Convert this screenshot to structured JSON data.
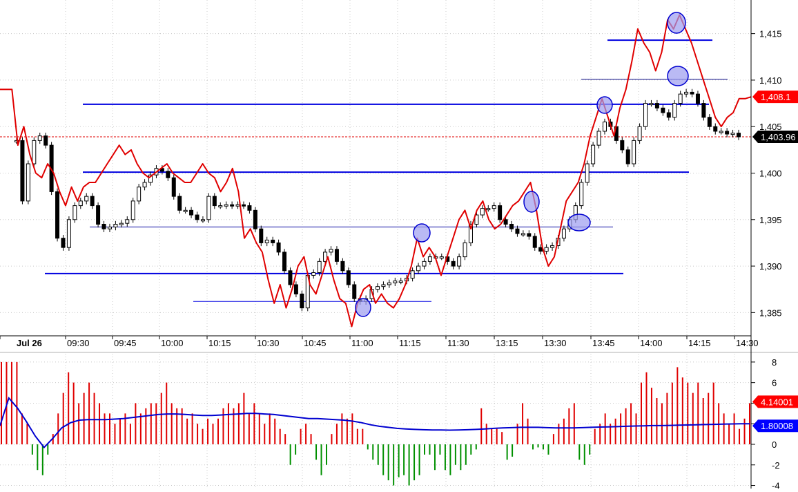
{
  "chart_data": [
    {
      "type": "candlestick",
      "x_ticks": [
        "Jul 26",
        "09:30",
        "09:45",
        "10:00",
        "10:15",
        "10:30",
        "10:45",
        "11:00",
        "11:15",
        "11:30",
        "13:15",
        "13:30",
        "13:45",
        "14:00",
        "14:15",
        "14:30"
      ],
      "y_ticks": [
        "1,415",
        "1,410",
        "1,405",
        "1,400",
        "1,395",
        "1,390",
        "1,385"
      ],
      "ylim": [
        1382.5,
        1417.5
      ],
      "grid": true,
      "price_series": [
        1403.5,
        1397,
        1401,
        1403.5,
        1404,
        1403,
        1398,
        1393,
        1392,
        1395,
        1396.5,
        1397,
        1397.5,
        1396.5,
        1394.5,
        1394,
        1394.2,
        1394.5,
        1394.6,
        1395,
        1397,
        1398.5,
        1399,
        1399.8,
        1400.5,
        1400.2,
        1399.5,
        1397.5,
        1396,
        1396,
        1395.5,
        1395,
        1395,
        1397.5,
        1396.5,
        1396.5,
        1396.6,
        1396.5,
        1396.6,
        1396.5,
        1396,
        1394,
        1392.5,
        1392.8,
        1392.5,
        1391.5,
        1389.5,
        1388,
        1387,
        1385.5,
        1389,
        1389.3,
        1390.5,
        1391.5,
        1391.8,
        1390.5,
        1389.5,
        1388,
        1386.5,
        1386.2,
        1386.5,
        1387.5,
        1387.8,
        1388,
        1388.2,
        1388.4,
        1388.4,
        1388.7,
        1389.5,
        1390,
        1390.5,
        1391,
        1391,
        1391,
        1390.5,
        1390,
        1391,
        1392.5,
        1394.5,
        1395.5,
        1396.2,
        1396.2,
        1396.5,
        1395,
        1394.5,
        1394,
        1393.5,
        1393.5,
        1393.2,
        1392,
        1391.6,
        1392,
        1392.2,
        1393,
        1394,
        1395,
        1396.5,
        1399,
        1401,
        1403,
        1404.5,
        1405.5,
        1405,
        1403.5,
        1402.5,
        1401,
        1403.5,
        1405,
        1407.5,
        1407.5,
        1407,
        1406.5,
        1406,
        1407.5,
        1408.5,
        1408.7,
        1408.5,
        1407.5,
        1406,
        1405,
        1404.5,
        1404.5,
        1404.2,
        1404.3,
        1403.9
      ],
      "overlay_line": {
        "color": "#e00000",
        "values": [
          1409,
          1409,
          1409,
          1403,
          1405,
          1402,
          1400,
          1399.5,
          1401,
          1400,
          1398,
          1396.5,
          1398.5,
          1397,
          1398.5,
          1399,
          1399,
          1400,
          1401,
          1402,
          1403,
          1402,
          1402.5,
          1401,
          1400,
          1399.5,
          1400,
          1400.5,
          1401,
          1400,
          1399.5,
          1399,
          1399,
          1400,
          1401,
          1400,
          1399.5,
          1398,
          1399,
          1400.5,
          1398,
          1393,
          1394,
          1392.5,
          1391.5,
          1388.5,
          1386,
          1388,
          1385.5,
          1387.5,
          1390,
          1391,
          1388,
          1387,
          1389,
          1391,
          1388.5,
          1386.5,
          1386,
          1383.5,
          1386,
          1387.5,
          1388,
          1386,
          1387,
          1386,
          1385.5,
          1386.5,
          1388,
          1390,
          1393,
          1391,
          1392,
          1391,
          1389,
          1391,
          1393,
          1395,
          1396,
          1394,
          1396,
          1397,
          1395,
          1394,
          1394.5,
          1395.5,
          1396.5,
          1397,
          1398,
          1399,
          1396,
          1392,
          1390,
          1391,
          1394,
          1397,
          1398,
          1399,
          1401,
          1404,
          1406,
          1408,
          1406,
          1404,
          1407,
          1409,
          1412,
          1415.5,
          1414,
          1413,
          1411,
          1413,
          1416.5,
          1415.5,
          1417,
          1415.5,
          1414,
          1412,
          1410,
          1408,
          1406,
          1405,
          1406,
          1406.5,
          1408,
          1408,
          1408.2
        ]
      },
      "horizontal_levels": [
        1414.3,
        1410.1,
        1407.4,
        1400.1,
        1394.2,
        1389.2,
        1386.2
      ],
      "reference_line": 1403.9,
      "price_labels": [
        {
          "text": "1,408.1",
          "bg": "#ff0000",
          "fg": "#ffffff"
        },
        {
          "text": "1,403.96",
          "bg": "#000000",
          "fg": "#ffffff"
        }
      ]
    },
    {
      "type": "bar",
      "y_ticks": [
        "8",
        "6",
        "4",
        "2",
        "0",
        "-2",
        "-4"
      ],
      "ylim": [
        -4.3,
        8.8
      ],
      "positive_color": "#e00000",
      "negative_color": "#009000",
      "values": [
        8,
        8,
        8,
        8,
        3,
        2,
        -1,
        -2.5,
        -3,
        -1,
        1,
        3,
        5,
        7,
        6,
        4,
        5,
        6,
        5,
        4,
        3,
        3,
        2,
        2.5,
        3,
        2,
        4,
        3,
        3.5,
        4,
        4,
        5,
        6,
        4,
        3.5,
        3.5,
        2.5,
        3,
        2,
        1.5,
        2.5,
        2,
        2.5,
        3.5,
        4,
        3.5,
        4,
        5,
        3,
        4,
        3,
        2,
        3,
        2.5,
        1.5,
        1,
        -2,
        -1,
        1.5,
        2,
        1,
        -1.5,
        -3,
        -2,
        1,
        2,
        3,
        2.5,
        3,
        1.5,
        1.5,
        -0.5,
        -1.5,
        -2,
        -3,
        -3.5,
        -4,
        -3.2,
        -3,
        -4,
        -3.5,
        -3,
        -1,
        -1,
        -2.5,
        -1,
        -2.5,
        -3,
        -2,
        -2.5,
        -2,
        -1,
        -0.5,
        3.5,
        2,
        1.5,
        1.5,
        1.2,
        -1.5,
        -1.2,
        2,
        4,
        2.5,
        -0.5,
        -0.3,
        -0.5,
        -1,
        1,
        2,
        2.5,
        3.5,
        4,
        -1.5,
        -2,
        -1,
        1.5,
        2,
        3,
        2,
        2.5,
        3,
        3.5,
        4,
        3,
        6,
        7,
        5.5,
        4.5,
        4,
        5,
        6,
        7.5,
        6.5,
        6,
        5,
        6,
        4.5,
        5,
        6,
        4,
        3,
        2,
        3,
        1.5,
        2.5,
        4
      ],
      "signal_line": {
        "color": "#0000d0",
        "values": [
          1.8,
          4.5,
          3.5,
          2.2,
          0.8,
          -0.3,
          0.6,
          1.6,
          2.1,
          2.35,
          2.4,
          2.4,
          2.4,
          2.45,
          2.5,
          2.6,
          2.7,
          2.8,
          2.9,
          2.95,
          2.95,
          2.9,
          2.85,
          2.8,
          2.8,
          2.85,
          2.9,
          2.95,
          3,
          3,
          2.95,
          2.9,
          2.8,
          2.7,
          2.6,
          2.5,
          2.5,
          2.45,
          2.4,
          2.35,
          2.25,
          2.1,
          1.9,
          1.75,
          1.65,
          1.55,
          1.5,
          1.45,
          1.42,
          1.4,
          1.4,
          1.38,
          1.4,
          1.42,
          1.45,
          1.5,
          1.55,
          1.6,
          1.62,
          1.65,
          1.65,
          1.65,
          1.62,
          1.6,
          1.6,
          1.6,
          1.62,
          1.65,
          1.68,
          1.7,
          1.72,
          1.75,
          1.78,
          1.8,
          1.82,
          1.82,
          1.84,
          1.86,
          1.88,
          1.9,
          1.92,
          1.94,
          1.96,
          1.98,
          2,
          2
        ]
      },
      "value_labels": [
        {
          "text": "4.14001",
          "bg": "#ff0000",
          "fg": "#ffffff"
        },
        {
          "text": "1.80008",
          "bg": "#0000ff",
          "fg": "#ffffff"
        }
      ]
    }
  ]
}
